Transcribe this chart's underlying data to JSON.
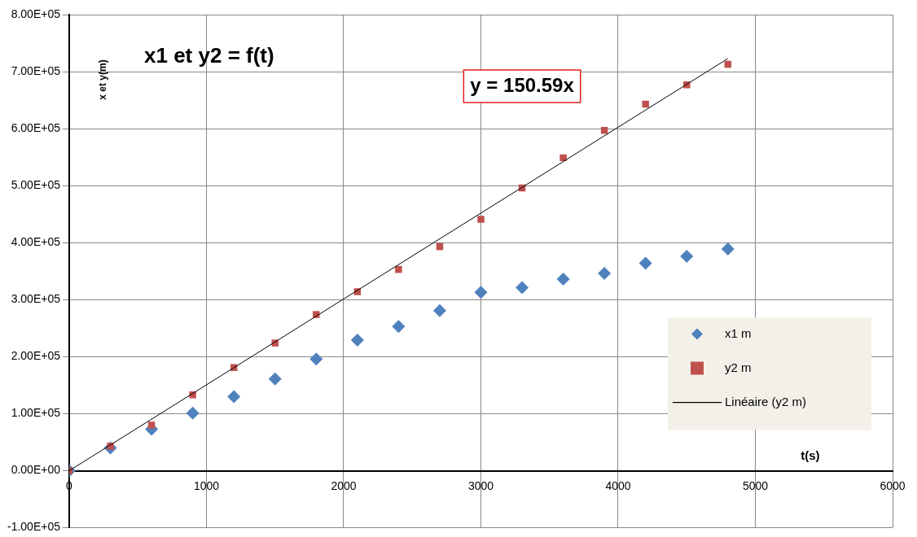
{
  "chart_data": {
    "type": "scatter",
    "title": "x1 et y2 = f(t)",
    "xlabel": "t(s)",
    "ylabel": "x et y(m)",
    "x": [
      0,
      300,
      600,
      900,
      1200,
      1500,
      1800,
      2100,
      2400,
      2700,
      3000,
      3300,
      3600,
      3900,
      4200,
      4500,
      4800
    ],
    "series": [
      {
        "name": "x1 m",
        "color": "#4f81bd",
        "marker": "diamond",
        "values": [
          0,
          40000,
          73000,
          101000,
          130000,
          161000,
          196000,
          229000,
          253000,
          281000,
          313000,
          321000,
          336000,
          346000,
          364000,
          376000,
          389000
        ]
      },
      {
        "name": "y2 m",
        "color": "#c0504d",
        "marker": "square",
        "values": [
          0,
          43000,
          80000,
          133000,
          181000,
          224000,
          274000,
          314000,
          353000,
          393000,
          441000,
          496000,
          549000,
          597000,
          643000,
          677000,
          713000
        ]
      },
      {
        "name": "Linéaire (y2 m)",
        "type": "line",
        "color": "#000000",
        "marker": "none",
        "x": [
          0,
          4800
        ],
        "values": [
          0,
          723000
        ]
      }
    ],
    "annotations": [
      "y = 150.59x"
    ],
    "xlim": [
      0,
      6000
    ],
    "xticks": [
      0,
      1000,
      2000,
      3000,
      4000,
      5000,
      6000
    ],
    "ylim": [
      -100000,
      800000
    ],
    "yticks": [
      {
        "value": -100000,
        "label": "-1.00E+05"
      },
      {
        "value": 0,
        "label": "0.00E+00"
      },
      {
        "value": 100000,
        "label": "1.00E+05"
      },
      {
        "value": 200000,
        "label": "2.00E+05"
      },
      {
        "value": 300000,
        "label": "3.00E+05"
      },
      {
        "value": 400000,
        "label": "4.00E+05"
      },
      {
        "value": 500000,
        "label": "5.00E+05"
      },
      {
        "value": 600000,
        "label": "6.00E+05"
      },
      {
        "value": 700000,
        "label": "7.00E+05"
      },
      {
        "value": 800000,
        "label": "8.00E+05"
      }
    ],
    "grid": true,
    "legend": "bottom right"
  }
}
